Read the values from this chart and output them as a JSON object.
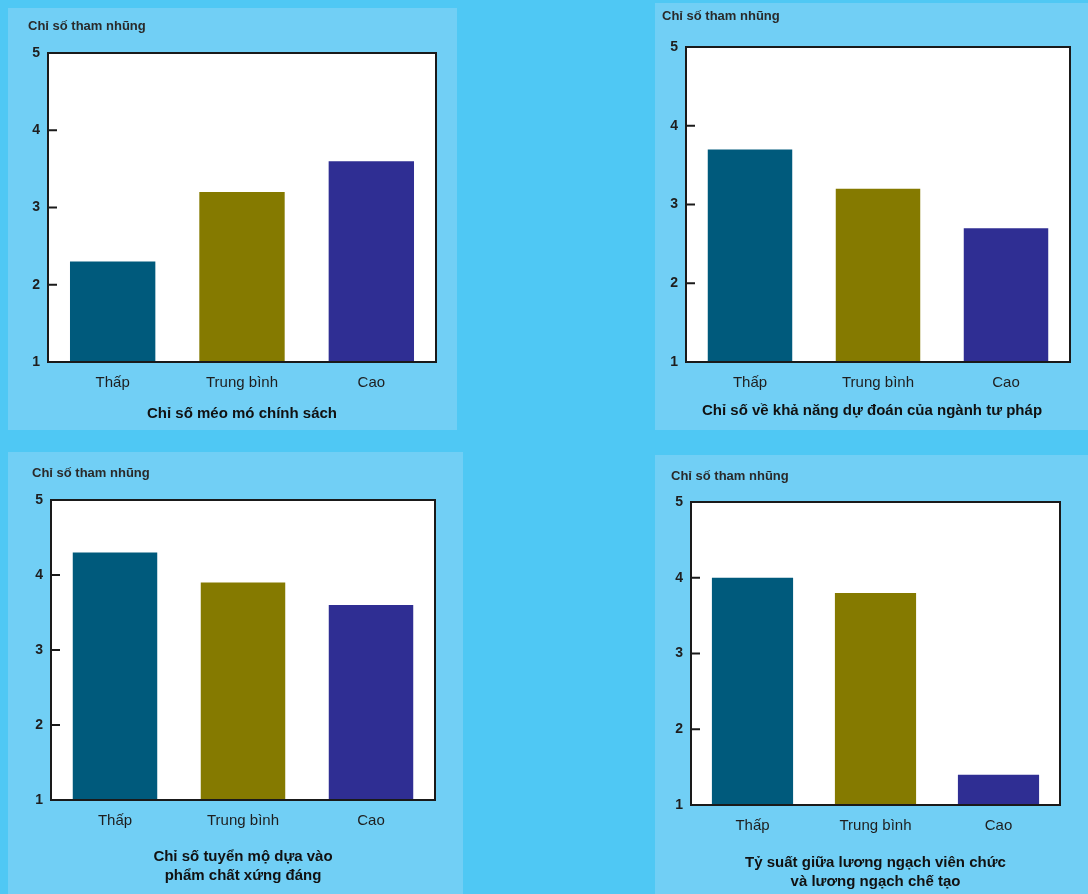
{
  "chart_data": [
    {
      "type": "bar",
      "ylabel": "Chỉ số tham nhũng",
      "xlabel": "Chỉ số méo mó chính sách",
      "categories": [
        "Thấp",
        "Trung bình",
        "Cao"
      ],
      "values": [
        2.3,
        3.2,
        3.6
      ],
      "colors": [
        "#005a7c",
        "#857a00",
        "#2f2e93"
      ],
      "ylim": [
        1,
        5
      ],
      "yticks": [
        1,
        2,
        3,
        4,
        5
      ]
    },
    {
      "type": "bar",
      "ylabel": "Chỉ số tham nhũng",
      "xlabel": "Chỉ số về khả năng dự đoán của ngành tư pháp",
      "categories": [
        "Thấp",
        "Trung bình",
        "Cao"
      ],
      "values": [
        3.7,
        3.2,
        2.7
      ],
      "colors": [
        "#005a7c",
        "#857a00",
        "#2f2e93"
      ],
      "ylim": [
        1,
        5
      ],
      "yticks": [
        1,
        2,
        3,
        4,
        5
      ]
    },
    {
      "type": "bar",
      "ylabel": "Chỉ số tham nhũng",
      "xlabel": "Chỉ số tuyển mộ dựa vào phẩm chất xứng đáng",
      "categories": [
        "Thấp",
        "Trung bình",
        "Cao"
      ],
      "values": [
        4.3,
        3.9,
        3.6
      ],
      "colors": [
        "#005a7c",
        "#857a00",
        "#2f2e93"
      ],
      "ylim": [
        1,
        5
      ],
      "yticks": [
        1,
        2,
        3,
        4,
        5
      ]
    },
    {
      "type": "bar",
      "ylabel": "Chỉ số tham nhũng",
      "xlabel": "Tỷ suất giữa lương ngạch viên chức và lương ngạch chế tạo",
      "categories": [
        "Thấp",
        "Trung bình",
        "Cao"
      ],
      "values": [
        4.0,
        3.8,
        1.4
      ],
      "colors": [
        "#005a7c",
        "#857a00",
        "#2f2e93"
      ],
      "ylim": [
        1,
        5
      ],
      "yticks": [
        1,
        2,
        3,
        4,
        5
      ]
    }
  ]
}
